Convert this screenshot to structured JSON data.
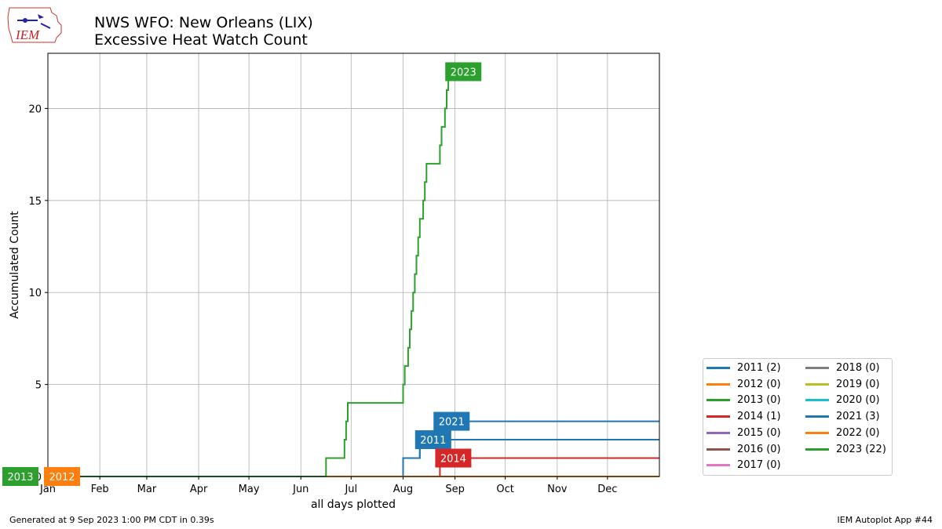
{
  "header": {
    "title_line1": "NWS WFO: New Orleans (LIX)",
    "title_line2": "Excessive Heat Watch Count",
    "logo_text": "IEM"
  },
  "footer": {
    "left": "Generated at 9 Sep 2023 1:00 PM CDT in 0.39s",
    "right": "IEM Autoplot App #44"
  },
  "chart_data": {
    "type": "line",
    "step": true,
    "title": "",
    "xlabel": "all days plotted",
    "ylabel": "Accumulated Count",
    "x_unit": "day of year",
    "xlim": [
      1,
      366
    ],
    "ylim": [
      0,
      23
    ],
    "x_ticks": [
      {
        "label": "Jan",
        "day": 1
      },
      {
        "label": "Feb",
        "day": 32
      },
      {
        "label": "Mar",
        "day": 60
      },
      {
        "label": "Apr",
        "day": 91
      },
      {
        "label": "May",
        "day": 121
      },
      {
        "label": "Jun",
        "day": 152
      },
      {
        "label": "Jul",
        "day": 182
      },
      {
        "label": "Aug",
        "day": 213
      },
      {
        "label": "Sep",
        "day": 244
      },
      {
        "label": "Oct",
        "day": 274
      },
      {
        "label": "Nov",
        "day": 305
      },
      {
        "label": "Dec",
        "day": 335
      }
    ],
    "y_ticks": [
      0,
      5,
      10,
      15,
      20
    ],
    "grid": true,
    "legend_position": "outside-right-bottom",
    "series": [
      {
        "name": "2011 (2)",
        "color": "#1f77b4",
        "points": [
          [
            1,
            0
          ],
          [
            213,
            0
          ],
          [
            213,
            1
          ],
          [
            223,
            1
          ],
          [
            223,
            2
          ],
          [
            366,
            2
          ]
        ]
      },
      {
        "name": "2012 (0)",
        "color": "#ff7f0e",
        "points": [
          [
            1,
            0
          ],
          [
            366,
            0
          ]
        ]
      },
      {
        "name": "2013 (0)",
        "color": "#2ca02c",
        "points": [
          [
            1,
            0
          ],
          [
            366,
            0
          ]
        ]
      },
      {
        "name": "2014 (1)",
        "color": "#d62728",
        "points": [
          [
            1,
            0
          ],
          [
            235,
            0
          ],
          [
            235,
            1
          ],
          [
            366,
            1
          ]
        ]
      },
      {
        "name": "2015 (0)",
        "color": "#9467bd",
        "points": [
          [
            1,
            0
          ],
          [
            366,
            0
          ]
        ]
      },
      {
        "name": "2016 (0)",
        "color": "#8c564b",
        "points": [
          [
            1,
            0
          ],
          [
            366,
            0
          ]
        ]
      },
      {
        "name": "2017 (0)",
        "color": "#e377c2",
        "points": [
          [
            1,
            0
          ],
          [
            366,
            0
          ]
        ]
      },
      {
        "name": "2018 (0)",
        "color": "#7f7f7f",
        "points": [
          [
            1,
            0
          ],
          [
            366,
            0
          ]
        ]
      },
      {
        "name": "2019 (0)",
        "color": "#bcbd22",
        "points": [
          [
            1,
            0
          ],
          [
            366,
            0
          ]
        ]
      },
      {
        "name": "2020 (0)",
        "color": "#17becf",
        "points": [
          [
            1,
            0
          ],
          [
            366,
            0
          ]
        ]
      },
      {
        "name": "2021 (3)",
        "color": "#1f77b4",
        "points": [
          [
            1,
            0
          ],
          [
            213,
            0
          ],
          [
            213,
            1
          ],
          [
            223,
            1
          ],
          [
            223,
            2
          ],
          [
            234,
            2
          ],
          [
            234,
            3
          ],
          [
            366,
            3
          ]
        ]
      },
      {
        "name": "2022 (0)",
        "color": "#ff7f0e",
        "points": [
          [
            1,
            0
          ],
          [
            366,
            0
          ]
        ]
      },
      {
        "name": "2023 (22)",
        "color": "#2ca02c",
        "points": [
          [
            1,
            0
          ],
          [
            167,
            0
          ],
          [
            167,
            1
          ],
          [
            178,
            1
          ],
          [
            178,
            2
          ],
          [
            179,
            2
          ],
          [
            179,
            3
          ],
          [
            180,
            3
          ],
          [
            180,
            4
          ],
          [
            213,
            4
          ],
          [
            213,
            5
          ],
          [
            214,
            5
          ],
          [
            214,
            6
          ],
          [
            216,
            6
          ],
          [
            216,
            7
          ],
          [
            217,
            7
          ],
          [
            217,
            8
          ],
          [
            218,
            8
          ],
          [
            218,
            9
          ],
          [
            219,
            9
          ],
          [
            219,
            10
          ],
          [
            220,
            10
          ],
          [
            220,
            11
          ],
          [
            221,
            11
          ],
          [
            221,
            12
          ],
          [
            222,
            12
          ],
          [
            222,
            13
          ],
          [
            223,
            13
          ],
          [
            223,
            14
          ],
          [
            225,
            14
          ],
          [
            225,
            15
          ],
          [
            226,
            15
          ],
          [
            226,
            16
          ],
          [
            227,
            16
          ],
          [
            227,
            17
          ],
          [
            235,
            17
          ],
          [
            235,
            18
          ],
          [
            236,
            18
          ],
          [
            236,
            19
          ],
          [
            238,
            19
          ],
          [
            238,
            20
          ],
          [
            239,
            20
          ],
          [
            239,
            21
          ],
          [
            240,
            21
          ],
          [
            240,
            22
          ],
          [
            241,
            22
          ]
        ]
      }
    ],
    "annotations": [
      {
        "text": "2023",
        "x": 241,
        "y": 22,
        "color": "#2ca02c"
      },
      {
        "text": "2021",
        "x": 234,
        "y": 3,
        "color": "#1f77b4"
      },
      {
        "text": "2011",
        "x": 223,
        "y": 2,
        "color": "#1f77b4"
      },
      {
        "text": "2014",
        "x": 235,
        "y": 1,
        "color": "#d62728"
      },
      {
        "text": "2013",
        "x": 1,
        "y": 0,
        "color": "#2ca02c",
        "anchor": "end"
      },
      {
        "text": "2012",
        "x": 1,
        "y": 0,
        "color": "#ff7f0e"
      }
    ],
    "legend_columns": [
      [
        "2011 (2)",
        "2012 (0)",
        "2013 (0)",
        "2014 (1)",
        "2015 (0)",
        "2016 (0)",
        "2017 (0)"
      ],
      [
        "2018 (0)",
        "2019 (0)",
        "2020 (0)",
        "2021 (3)",
        "2022 (0)",
        "2023 (22)"
      ]
    ]
  }
}
